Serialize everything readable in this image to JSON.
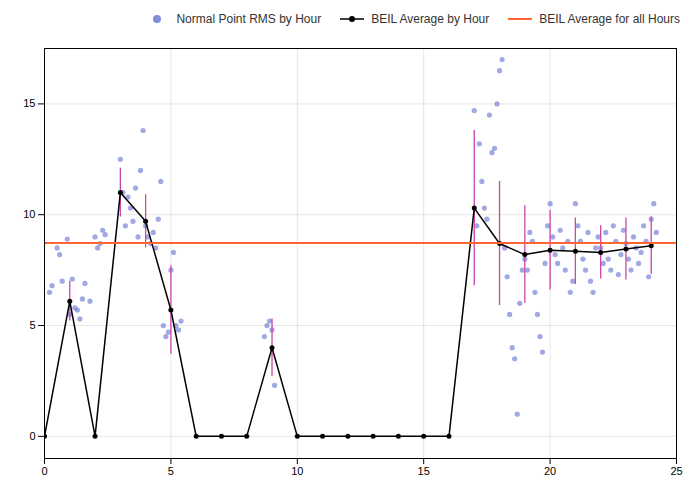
{
  "chart_data": {
    "type": "scatter",
    "title": "",
    "xlim": [
      0,
      25
    ],
    "ylim": [
      -1,
      17.5
    ],
    "xticks": [
      0,
      5,
      10,
      15,
      20,
      25
    ],
    "yticks": [
      0,
      5,
      10,
      15
    ],
    "grid": true,
    "legend": "upper right",
    "series": [
      {
        "name": "Normal Point RMS by Hour",
        "type": "scatter",
        "color": "#6070d0",
        "marker": "circle",
        "x": [
          0.2,
          0.5,
          0.7,
          0.9,
          0.3,
          0.6,
          1.0,
          1.2,
          1.4,
          1.6,
          1.8,
          1.1,
          1.3,
          1.5,
          2.0,
          2.2,
          2.4,
          2.1,
          2.3,
          3.0,
          3.2,
          3.4,
          3.6,
          3.8,
          3.1,
          3.3,
          3.5,
          3.7,
          3.9,
          4.0,
          4.2,
          4.4,
          4.6,
          4.8,
          4.1,
          4.3,
          4.5,
          4.7,
          4.9,
          5.0,
          5.1,
          5.2,
          5.3,
          5.4,
          8.7,
          8.8,
          8.9,
          9.0,
          9.1,
          17.0,
          17.1,
          17.2,
          17.3,
          17.4,
          17.5,
          17.6,
          17.7,
          17.8,
          17.9,
          18.0,
          18.1,
          18.2,
          18.3,
          18.4,
          18.5,
          18.6,
          18.7,
          18.8,
          18.9,
          19.0,
          19.1,
          19.2,
          19.3,
          19.4,
          19.5,
          19.6,
          19.7,
          19.8,
          19.9,
          20.0,
          20.1,
          20.2,
          20.3,
          20.4,
          20.5,
          20.6,
          20.7,
          20.8,
          20.9,
          21.0,
          21.1,
          21.2,
          21.3,
          21.4,
          21.5,
          21.6,
          21.7,
          21.8,
          21.9,
          22.0,
          22.1,
          22.2,
          22.3,
          22.4,
          22.5,
          22.6,
          22.7,
          22.8,
          22.9,
          23.0,
          23.1,
          23.2,
          23.3,
          23.4,
          23.5,
          23.6,
          23.7,
          23.8,
          23.9,
          24.0,
          24.1,
          24.2
        ],
        "values": [
          6.5,
          8.5,
          7.0,
          8.9,
          6.8,
          8.2,
          5.5,
          5.8,
          5.3,
          6.9,
          6.1,
          7.1,
          5.7,
          6.2,
          9.0,
          8.7,
          9.1,
          8.5,
          9.3,
          12.5,
          9.5,
          10.3,
          11.2,
          12.0,
          11.0,
          10.8,
          9.7,
          9.0,
          13.8,
          9.5,
          8.7,
          8.5,
          11.5,
          4.5,
          9.0,
          9.2,
          9.8,
          5.0,
          4.7,
          7.5,
          8.3,
          5.0,
          4.8,
          5.2,
          4.5,
          5.0,
          5.2,
          4.8,
          2.3,
          14.7,
          9.5,
          13.2,
          11.5,
          10.3,
          9.8,
          14.5,
          12.8,
          13.0,
          15.0,
          16.5,
          17.0,
          8.5,
          7.2,
          5.5,
          4.0,
          3.5,
          1.0,
          6.0,
          7.5,
          8.0,
          7.5,
          9.2,
          8.8,
          6.5,
          5.5,
          4.5,
          3.8,
          7.8,
          9.5,
          10.5,
          9.0,
          8.2,
          7.8,
          9.3,
          8.5,
          7.5,
          8.8,
          6.5,
          7.0,
          10.5,
          9.5,
          8.8,
          8.0,
          7.5,
          9.2,
          7.0,
          6.5,
          8.5,
          9.0,
          8.5,
          7.8,
          9.2,
          8.0,
          7.5,
          9.5,
          8.8,
          7.3,
          8.2,
          9.3,
          8.7,
          8.0,
          7.5,
          9.0,
          8.5,
          7.8,
          8.3,
          9.5,
          8.8,
          7.2,
          9.8,
          10.5,
          9.2
        ]
      },
      {
        "name": "BEIL Average by Hour",
        "type": "line",
        "color": "black",
        "marker": "circle",
        "x": [
          0,
          1,
          2,
          3,
          4,
          5,
          6,
          7,
          8,
          9,
          10,
          11,
          12,
          13,
          14,
          15,
          16,
          17,
          18,
          19,
          20,
          21,
          22,
          23,
          24
        ],
        "values": [
          0.0,
          6.1,
          0.0,
          11.0,
          9.7,
          5.7,
          0.0,
          0.0,
          0.0,
          4.0,
          0.0,
          0.0,
          0.0,
          0.0,
          0.0,
          0.0,
          0.0,
          10.3,
          8.7,
          8.2,
          8.4,
          8.35,
          8.3,
          8.45,
          8.6
        ],
        "error_bars": {
          "color": "#cc44aa",
          "values": [
            0.0,
            0.9,
            0.0,
            1.1,
            1.2,
            2.0,
            0.0,
            0.0,
            0.0,
            1.3,
            0.0,
            0.0,
            0.0,
            0.0,
            0.0,
            0.0,
            0.0,
            3.5,
            2.8,
            2.2,
            1.8,
            1.5,
            1.2,
            1.4,
            1.3
          ]
        }
      },
      {
        "name": "BEIL Average for all Hours",
        "type": "hline",
        "color": "#ff6633",
        "values": [
          8.72
        ]
      }
    ]
  }
}
